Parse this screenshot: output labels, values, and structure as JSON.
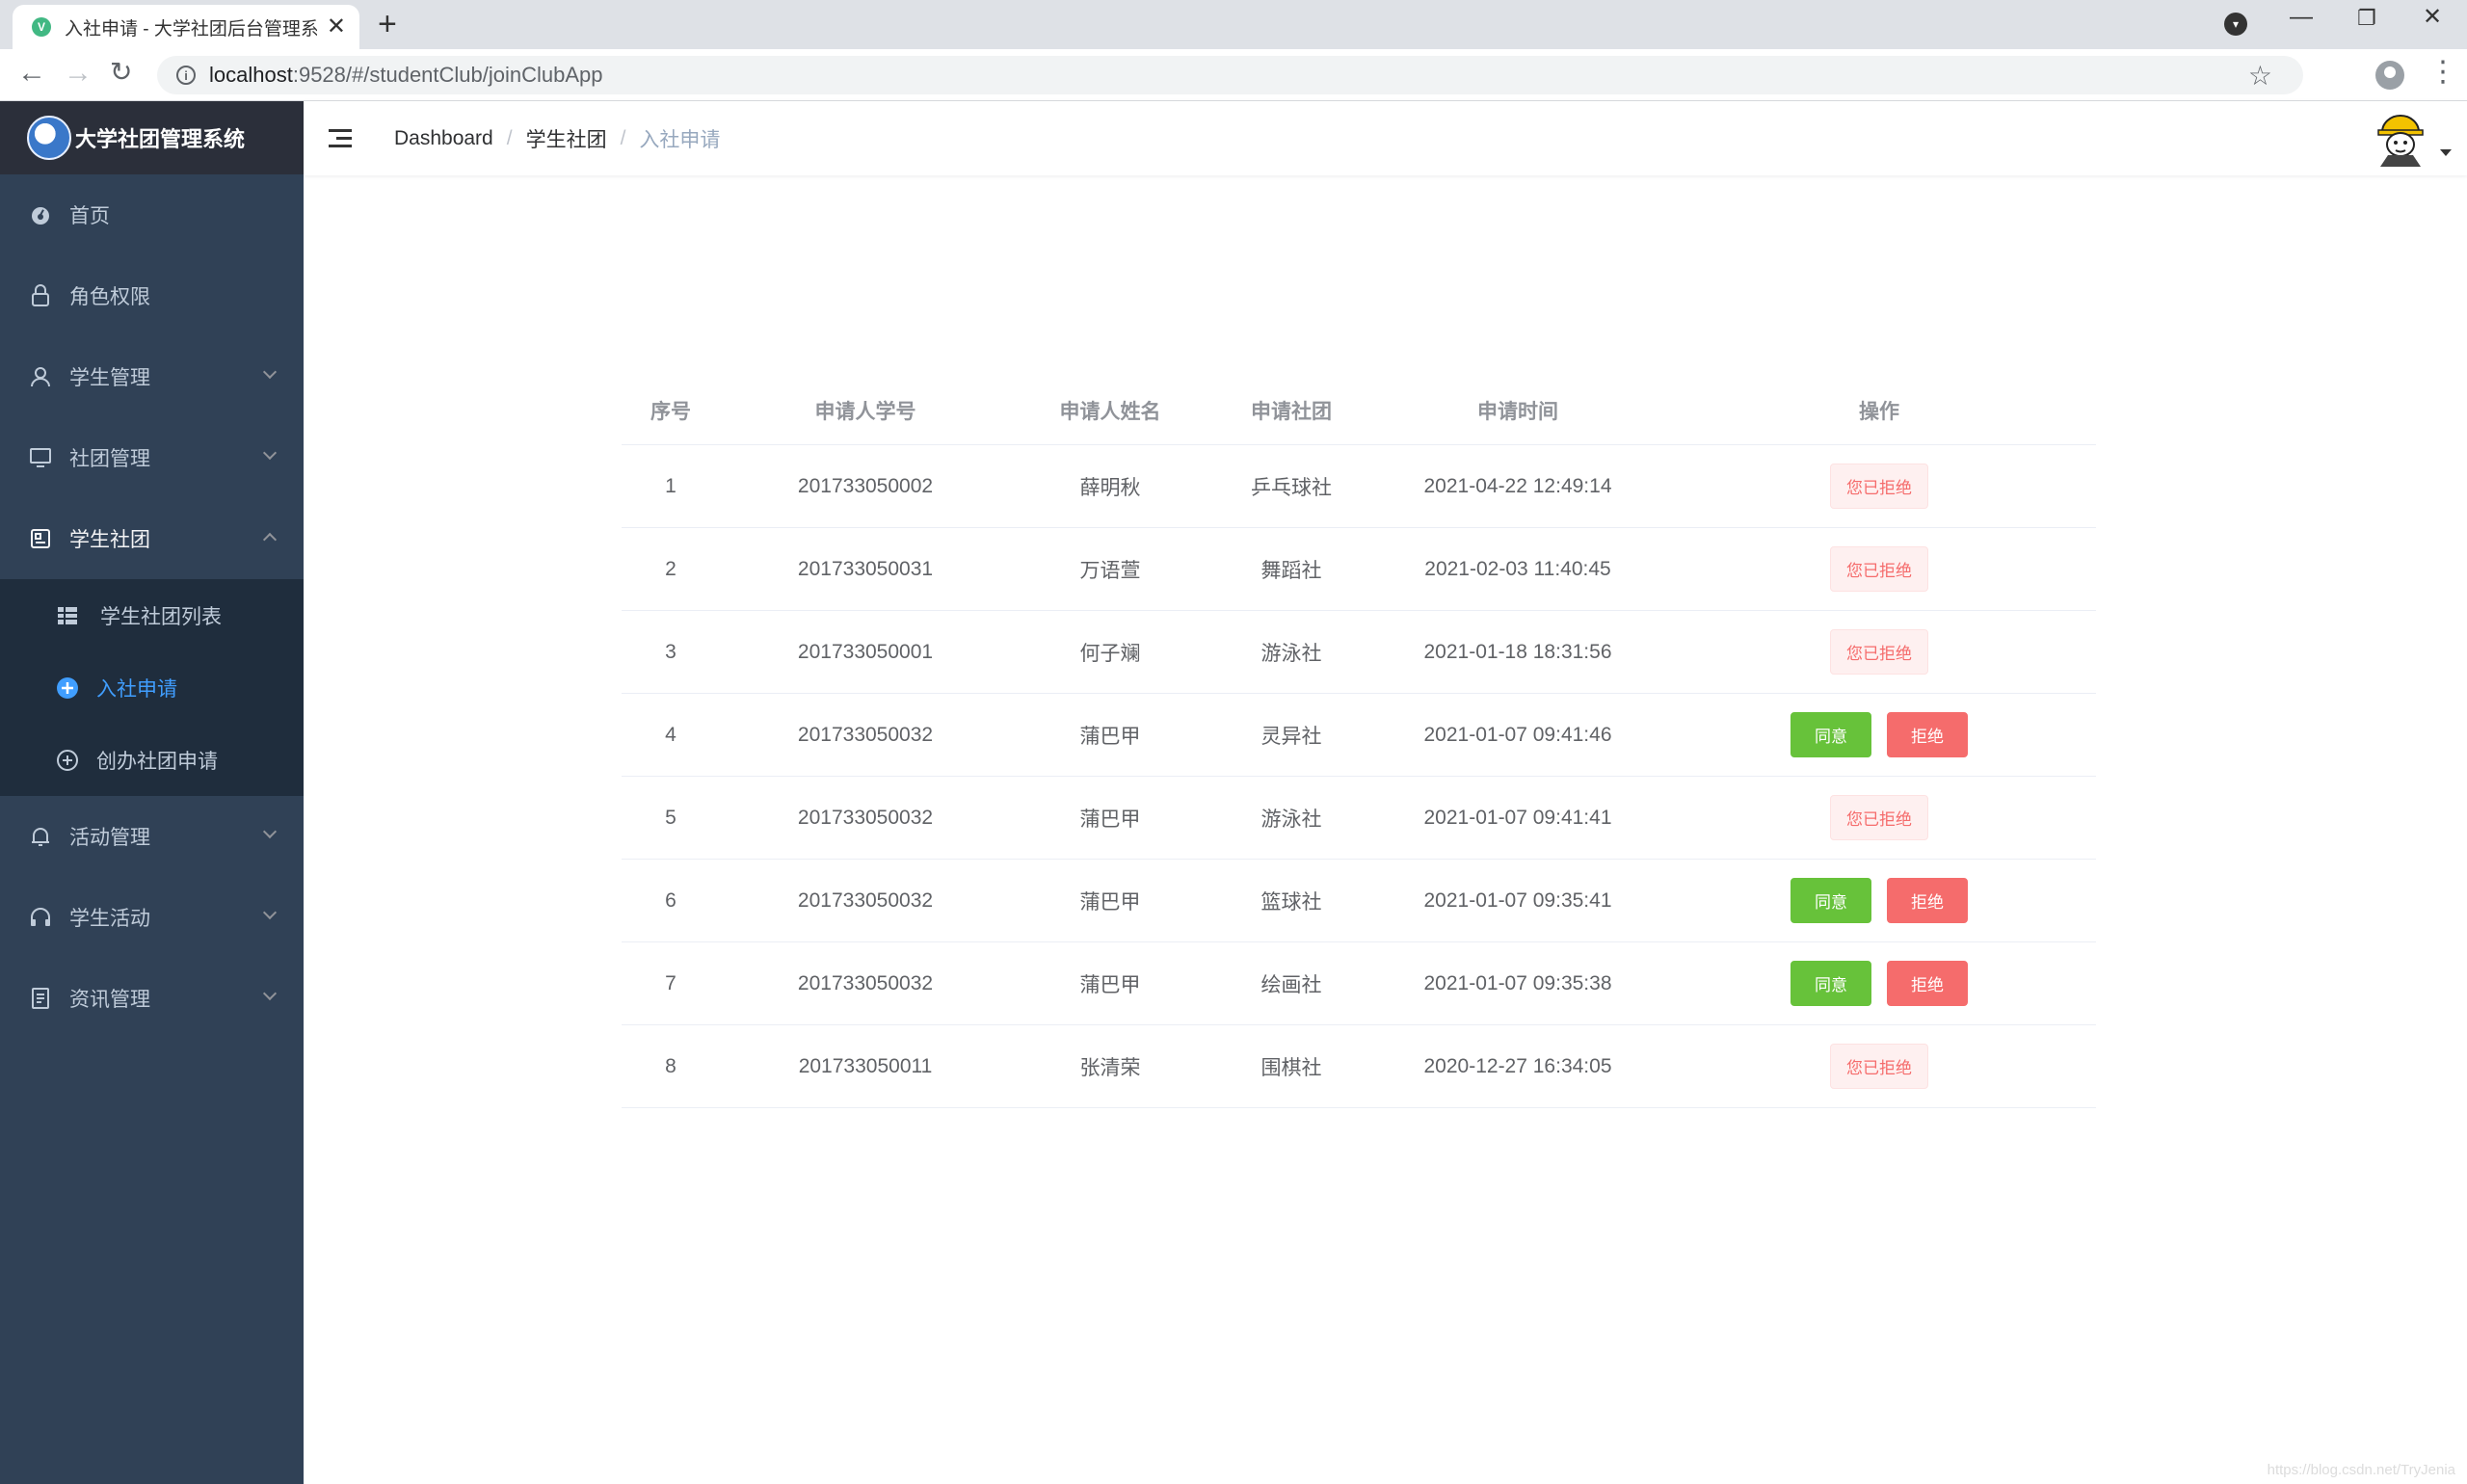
{
  "browser": {
    "tab_title": "入社申请 - 大学社团后台管理系统",
    "url_host": "localhost",
    "url_path": ":9528/#/studentClub/joinClubApp"
  },
  "sidebar": {
    "logo_text": "大学社团管理系统",
    "items": [
      {
        "label": "首页",
        "icon": "dashboard-icon"
      },
      {
        "label": "角色权限",
        "icon": "lock-icon"
      },
      {
        "label": "学生管理",
        "icon": "user-icon",
        "expandable": true
      },
      {
        "label": "社团管理",
        "icon": "monitor-icon",
        "expandable": true
      },
      {
        "label": "学生社团",
        "icon": "clipboard-icon",
        "expandable": true,
        "expanded": true
      }
    ],
    "subitems": [
      {
        "label": "学生社团列表",
        "icon": "table-icon"
      },
      {
        "label": "入社申请",
        "icon": "circle-plus-icon",
        "active": true
      },
      {
        "label": "创办社团申请",
        "icon": "circle-plus-outline-icon"
      }
    ],
    "items_after": [
      {
        "label": "活动管理",
        "icon": "bell-icon"
      },
      {
        "label": "学生活动",
        "icon": "headset-icon"
      },
      {
        "label": "资讯管理",
        "icon": "document-icon"
      }
    ]
  },
  "breadcrumb": [
    "Dashboard",
    "学生社团",
    "入社申请"
  ],
  "table": {
    "headers": [
      "序号",
      "申请人学号",
      "申请人姓名",
      "申请社团",
      "申请时间",
      "操作"
    ],
    "agree_label": "同意",
    "reject_label": "拒绝",
    "rejected_label": "您已拒绝",
    "rows": [
      {
        "no": "1",
        "student_id": "201733050002",
        "name": "薛明秋",
        "club": "乒乓球社",
        "time": "2021-04-22 12:49:14",
        "status": "rejected"
      },
      {
        "no": "2",
        "student_id": "201733050031",
        "name": "万语萱",
        "club": "舞蹈社",
        "time": "2021-02-03 11:40:45",
        "status": "rejected"
      },
      {
        "no": "3",
        "student_id": "201733050001",
        "name": "何子斓",
        "club": "游泳社",
        "time": "2021-01-18 18:31:56",
        "status": "rejected"
      },
      {
        "no": "4",
        "student_id": "201733050032",
        "name": "蒲巴甲",
        "club": "灵异社",
        "time": "2021-01-07 09:41:46",
        "status": "pending"
      },
      {
        "no": "5",
        "student_id": "201733050032",
        "name": "蒲巴甲",
        "club": "游泳社",
        "time": "2021-01-07 09:41:41",
        "status": "rejected"
      },
      {
        "no": "6",
        "student_id": "201733050032",
        "name": "蒲巴甲",
        "club": "篮球社",
        "time": "2021-01-07 09:35:41",
        "status": "pending"
      },
      {
        "no": "7",
        "student_id": "201733050032",
        "name": "蒲巴甲",
        "club": "绘画社",
        "time": "2021-01-07 09:35:38",
        "status": "pending"
      },
      {
        "no": "8",
        "student_id": "201733050011",
        "name": "张清荣",
        "club": "围棋社",
        "time": "2020-12-27 16:34:05",
        "status": "rejected"
      }
    ]
  },
  "watermark": "https://blog.csdn.net/TryJenia"
}
